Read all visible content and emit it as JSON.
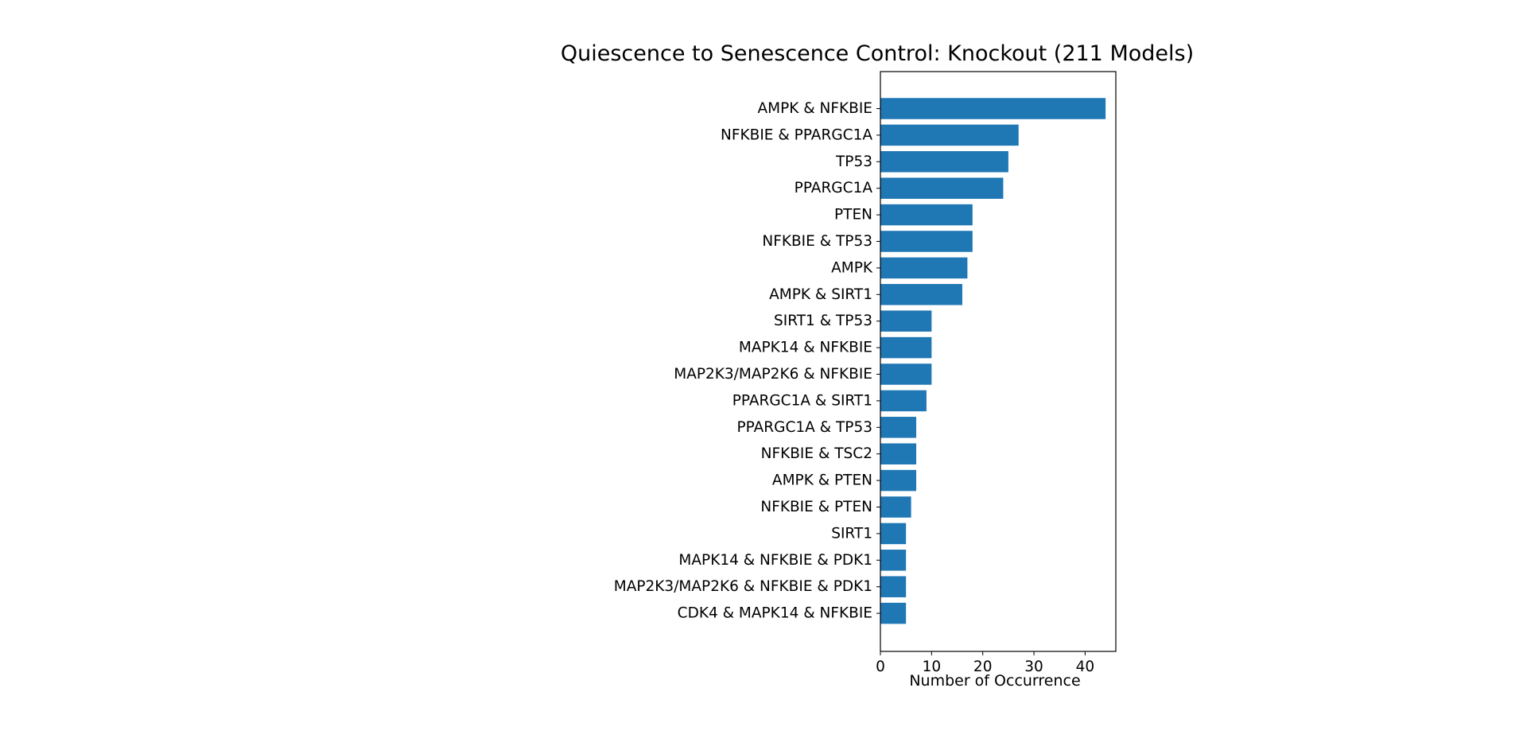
{
  "chart_data": {
    "type": "bar",
    "orientation": "horizontal",
    "title": "Quiescence to Senescence Control: Knockout (211 Models)",
    "xlabel": "Number of Occurrence",
    "ylabel": "",
    "xlim": [
      0,
      46
    ],
    "xticks": [
      0,
      10,
      20,
      30,
      40
    ],
    "grid": false,
    "bar_color": "#1f77b4",
    "categories": [
      "AMPK & NFKBIE",
      "NFKBIE & PPARGC1A",
      "TP53",
      "PPARGC1A",
      "PTEN",
      "NFKBIE & TP53",
      "AMPK",
      "AMPK & SIRT1",
      "SIRT1 & TP53",
      "MAPK14 & NFKBIE",
      "MAP2K3/MAP2K6 & NFKBIE",
      "PPARGC1A & SIRT1",
      "PPARGC1A & TP53",
      "NFKBIE & TSC2",
      "AMPK & PTEN",
      "NFKBIE & PTEN",
      "SIRT1",
      "MAPK14 & NFKBIE & PDK1",
      "MAP2K3/MAP2K6 & NFKBIE & PDK1",
      "CDK4 & MAPK14 & NFKBIE"
    ],
    "values": [
      44,
      27,
      25,
      24,
      18,
      18,
      17,
      16,
      10,
      10,
      10,
      9,
      7,
      7,
      7,
      6,
      5,
      5,
      5,
      5
    ]
  }
}
